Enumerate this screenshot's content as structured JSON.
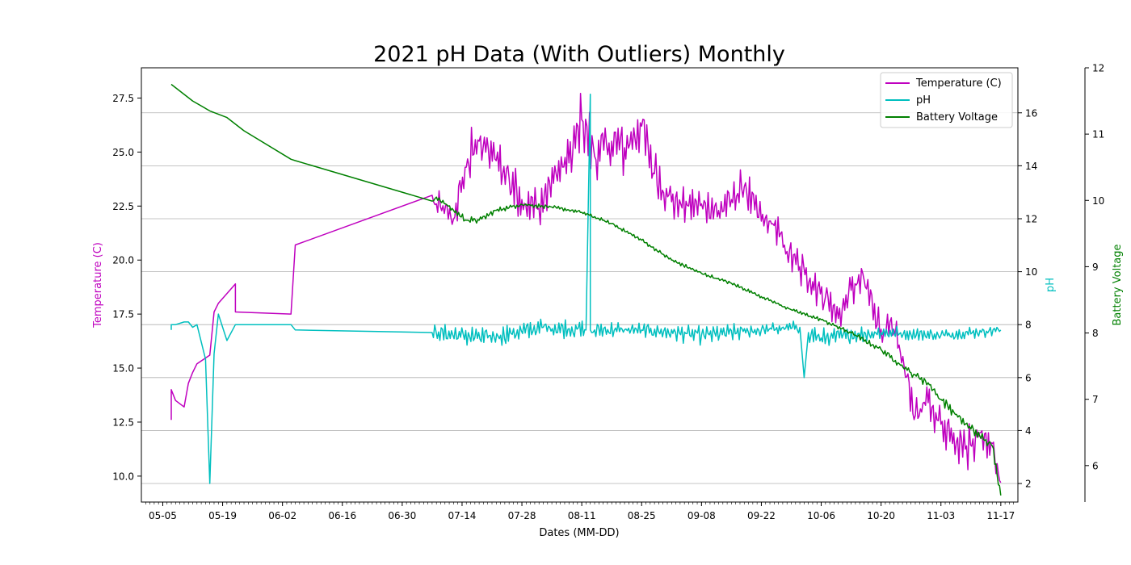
{
  "chart_data": {
    "type": "line",
    "title": "2021 pH Data (With Outliers) Monthly",
    "xlabel": "Dates (MM-DD)",
    "x_ticks": [
      "05-05",
      "05-19",
      "06-02",
      "06-16",
      "06-30",
      "07-14",
      "07-28",
      "08-11",
      "08-25",
      "09-08",
      "09-22",
      "10-06",
      "10-20",
      "11-03",
      "11-17"
    ],
    "x_tick_dates": [
      "2021-05-05",
      "2021-05-19",
      "2021-06-02",
      "2021-06-16",
      "2021-06-30",
      "2021-07-14",
      "2021-07-28",
      "2021-08-11",
      "2021-08-25",
      "2021-09-08",
      "2021-09-22",
      "2021-10-06",
      "2021-10-20",
      "2021-11-03",
      "2021-11-17"
    ],
    "xlim": [
      "2021-04-30",
      "2021-11-21"
    ],
    "grid": "horizontal (pH axis)",
    "legend_position": "top-right",
    "axes": {
      "temperature": {
        "label": "Temperature (C)",
        "ylim": [
          8.8,
          28.9
        ],
        "ticks": [
          "10.0",
          "12.5",
          "15.0",
          "17.5",
          "20.0",
          "22.5",
          "25.0",
          "27.5"
        ],
        "tick_values": [
          10,
          12.5,
          15,
          17.5,
          20,
          22.5,
          25,
          27.5
        ]
      },
      "ph": {
        "label": "pH",
        "ylim": [
          1.3,
          17.7
        ],
        "ticks": [
          "2",
          "4",
          "6",
          "8",
          "10",
          "12",
          "14",
          "16"
        ],
        "tick_values": [
          2,
          4,
          6,
          8,
          10,
          12,
          14,
          16
        ]
      },
      "battery": {
        "label": "Battery Voltage",
        "ylim": [
          5.45,
          12.0
        ],
        "ticks": [
          "6",
          "7",
          "8",
          "9",
          "10",
          "11",
          "12"
        ],
        "tick_values": [
          6,
          7,
          8,
          9,
          10,
          11,
          12
        ]
      }
    },
    "series": [
      {
        "name": "Temperature (C)",
        "axis": "temperature",
        "color": "#bf00bf",
        "style": "noisy",
        "x": [
          "2021-05-07",
          "2021-05-07",
          "2021-05-08",
          "2021-05-10",
          "2021-05-11",
          "2021-05-12",
          "2021-05-13",
          "2021-05-16",
          "2021-05-17",
          "2021-05-18",
          "2021-05-22",
          "2021-05-22",
          "2021-06-04",
          "2021-06-05",
          "2021-07-07",
          "2021-07-08",
          "2021-07-12",
          "2021-07-15",
          "2021-07-18",
          "2021-07-22",
          "2021-07-25",
          "2021-07-28",
          "2021-08-01",
          "2021-08-05",
          "2021-08-08",
          "2021-08-11",
          "2021-08-14",
          "2021-08-18",
          "2021-08-21",
          "2021-08-25",
          "2021-08-28",
          "2021-09-01",
          "2021-09-05",
          "2021-09-08",
          "2021-09-12",
          "2021-09-15",
          "2021-09-18",
          "2021-09-22",
          "2021-09-25",
          "2021-09-28",
          "2021-10-01",
          "2021-10-04",
          "2021-10-07",
          "2021-10-10",
          "2021-10-13",
          "2021-10-16",
          "2021-10-20",
          "2021-10-23",
          "2021-10-26",
          "2021-10-28",
          "2021-10-31",
          "2021-11-03",
          "2021-11-06",
          "2021-11-09",
          "2021-11-12",
          "2021-11-15",
          "2021-11-17"
        ],
        "values": [
          12.6,
          14.0,
          13.5,
          13.2,
          14.3,
          14.8,
          15.2,
          15.6,
          17.6,
          18.0,
          18.9,
          17.6,
          17.5,
          20.7,
          23.0,
          22.6,
          21.9,
          24.3,
          25.5,
          24.6,
          23.8,
          22.8,
          22.4,
          24.0,
          24.5,
          26.5,
          24.8,
          25.5,
          25.2,
          26.2,
          24.0,
          22.7,
          22.5,
          22.6,
          22.3,
          22.8,
          23.4,
          21.8,
          21.6,
          20.4,
          19.7,
          19.0,
          18.3,
          17.3,
          18.6,
          19.1,
          16.8,
          16.8,
          14.6,
          12.8,
          13.4,
          12.4,
          12.0,
          11.4,
          12.0,
          11.5,
          9.7
        ],
        "noise": [
          0,
          0,
          0,
          0,
          0,
          0,
          0,
          0,
          0,
          0,
          0,
          0,
          0,
          0,
          0.8,
          0.8,
          0.8,
          1.6,
          1.3,
          1.4,
          1.6,
          1.1,
          1.1,
          1.3,
          1.5,
          1.5,
          1.6,
          1.4,
          1.5,
          1.3,
          1.3,
          1.0,
          1.0,
          0.9,
          0.9,
          0.8,
          1.1,
          0.9,
          1.0,
          0.8,
          1.0,
          1.0,
          1.1,
          0.9,
          0.9,
          1.0,
          0.9,
          0.8,
          0.9,
          0.8,
          1.0,
          1.2,
          1.4,
          1.3,
          1.2,
          1.0,
          0.7
        ]
      },
      {
        "name": "pH",
        "axis": "ph",
        "color": "#00bfbf",
        "style": "noisy",
        "x": [
          "2021-05-07",
          "2021-05-07",
          "2021-05-08",
          "2021-05-10",
          "2021-05-11",
          "2021-05-12",
          "2021-05-13",
          "2021-05-15",
          "2021-05-16",
          "2021-05-17",
          "2021-05-18",
          "2021-05-20",
          "2021-05-22",
          "2021-06-04",
          "2021-06-05",
          "2021-07-07",
          "2021-07-20",
          "2021-08-02",
          "2021-08-12",
          "2021-08-13",
          "2021-08-13",
          "2021-08-14",
          "2021-08-25",
          "2021-09-08",
          "2021-09-22",
          "2021-10-01",
          "2021-10-02",
          "2021-10-03",
          "2021-10-06",
          "2021-10-20",
          "2021-11-03",
          "2021-11-17"
        ],
        "values": [
          7.8,
          8.0,
          8.0,
          8.1,
          8.1,
          7.9,
          8.0,
          6.7,
          2.0,
          6.9,
          8.4,
          7.4,
          8.0,
          8.0,
          7.8,
          7.7,
          7.5,
          7.9,
          7.8,
          16.7,
          7.8,
          7.8,
          7.8,
          7.6,
          7.8,
          7.9,
          6.0,
          7.7,
          7.5,
          7.7,
          7.6,
          7.8
        ],
        "noise": [
          0,
          0,
          0,
          0,
          0,
          0,
          0,
          0,
          0,
          0,
          0,
          0,
          0,
          0,
          0,
          0.35,
          0.45,
          0.4,
          0.4,
          0,
          0.4,
          0.35,
          0.3,
          0.4,
          0.3,
          0.3,
          0,
          0.4,
          0.4,
          0.3,
          0.25,
          0.25
        ]
      },
      {
        "name": "Battery Voltage",
        "axis": "battery",
        "color": "#008000",
        "style": "noisy",
        "x": [
          "2021-05-07",
          "2021-05-08",
          "2021-05-12",
          "2021-05-16",
          "2021-05-20",
          "2021-05-24",
          "2021-06-04",
          "2021-06-05",
          "2021-07-07",
          "2021-07-08",
          "2021-07-12",
          "2021-07-15",
          "2021-07-18",
          "2021-07-22",
          "2021-07-28",
          "2021-08-04",
          "2021-08-11",
          "2021-08-18",
          "2021-08-25",
          "2021-09-01",
          "2021-09-08",
          "2021-09-15",
          "2021-09-22",
          "2021-09-29",
          "2021-10-06",
          "2021-10-13",
          "2021-10-20",
          "2021-10-27",
          "2021-10-31",
          "2021-11-03",
          "2021-11-10",
          "2021-11-15",
          "2021-11-17"
        ],
        "values": [
          11.75,
          11.7,
          11.5,
          11.35,
          11.25,
          11.05,
          10.62,
          10.6,
          9.99,
          10.05,
          9.85,
          9.7,
          9.7,
          9.85,
          9.94,
          9.9,
          9.82,
          9.65,
          9.4,
          9.1,
          8.9,
          8.75,
          8.55,
          8.35,
          8.2,
          8.0,
          7.75,
          7.4,
          7.25,
          7.0,
          6.55,
          6.3,
          5.55
        ],
        "noise": [
          0,
          0,
          0,
          0,
          0,
          0,
          0,
          0,
          0.04,
          0.04,
          0.05,
          0.06,
          0.05,
          0.04,
          0.04,
          0.03,
          0.03,
          0.03,
          0.03,
          0.03,
          0.03,
          0.03,
          0.03,
          0.03,
          0.03,
          0.04,
          0.05,
          0.06,
          0.08,
          0.08,
          0.1,
          0.1,
          0.06
        ]
      }
    ]
  }
}
